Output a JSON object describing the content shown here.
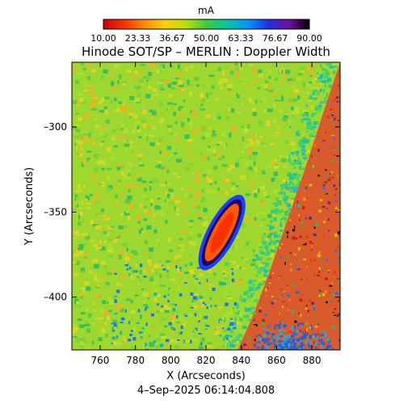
{
  "chart_data": {
    "type": "heatmap",
    "title": "Hinode SOT/SP – MERLIN : Doppler Width",
    "timestamp": "4–Sep–2025 06:14:04.808",
    "xlabel": "X (Arcseconds)",
    "ylabel": "Y (Arcseconds)",
    "colorbar": {
      "label": "mA",
      "min": 10.0,
      "max": 90.0,
      "tick_labels": [
        "10.00",
        "23.33",
        "36.67",
        "50.00",
        "63.33",
        "76.67",
        "90.00"
      ],
      "colormap": [
        "#d00000",
        "#ff3000",
        "#ff8a00",
        "#ffd000",
        "#b8e000",
        "#3ccc3c",
        "#00c8a0",
        "#0096ff",
        "#2030e8",
        "#7010a0",
        "#000000"
      ]
    },
    "xlim": [
      744,
      896
    ],
    "ylim": [
      -431,
      -262
    ],
    "xticks": [
      760,
      780,
      800,
      820,
      840,
      860,
      880
    ],
    "yticks": [
      -300,
      -350,
      -400
    ],
    "xtick_labels": [
      "760",
      "780",
      "800",
      "820",
      "840",
      "860",
      "880"
    ],
    "ytick_labels": [
      "–300",
      "–350",
      "–400"
    ],
    "limb_x": [
      838,
      847,
      856,
      866,
      876,
      886,
      896
    ],
    "limb_y": [
      -431,
      -410,
      -385,
      -355,
      -325,
      -293,
      -262
    ],
    "feature": {
      "center_x": 829,
      "center_y": -362,
      "description_values": {
        "core_width_mA": 15,
        "rim_width_mA": 88
      }
    }
  }
}
